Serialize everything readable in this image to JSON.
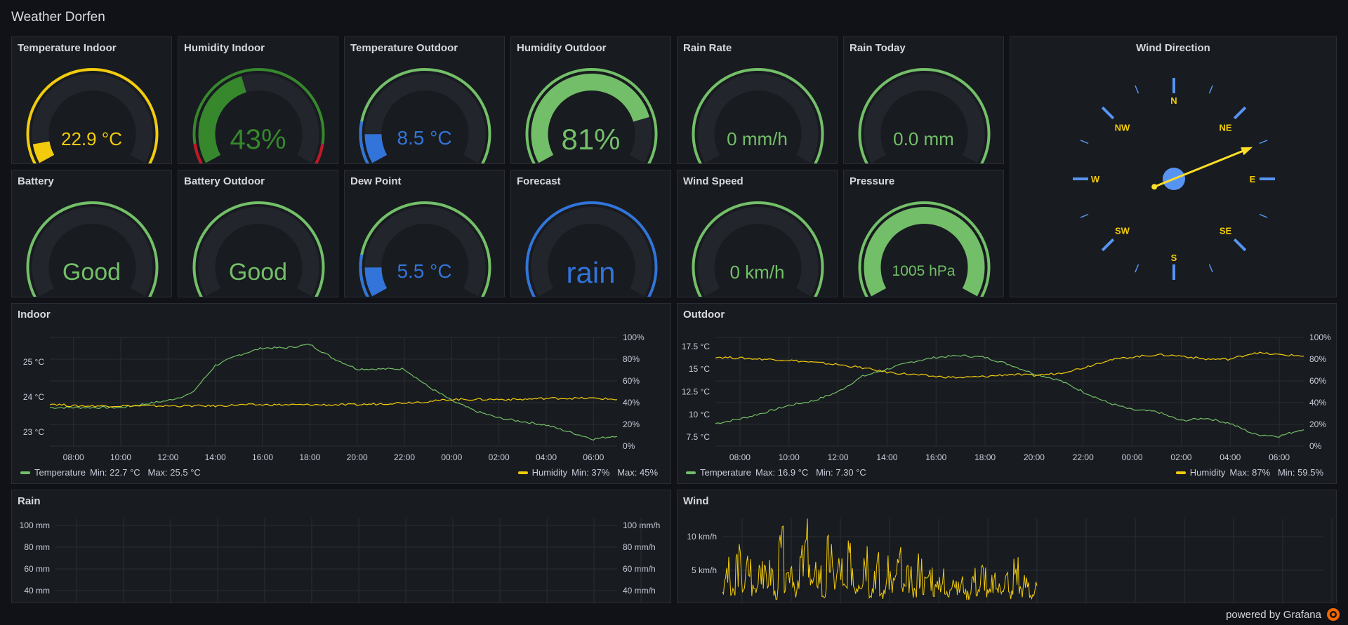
{
  "dashboard": {
    "title": "Weather Dorfen"
  },
  "gauges": [
    {
      "id": "temp-indoor",
      "title": "Temperature Indoor",
      "value": "22.9 °C",
      "fraction": 0.08,
      "color": "#f2cc0c",
      "track_color": "#f2cc0c"
    },
    {
      "id": "hum-indoor",
      "title": "Humidity Indoor",
      "value": "43%",
      "fraction": 0.43,
      "color": "#37872d"
    },
    {
      "id": "temp-outdoor",
      "title": "Temperature Outdoor",
      "value": "8.5 °C",
      "fraction": 0.12,
      "color": "#3274d9"
    },
    {
      "id": "hum-outdoor",
      "title": "Humidity Outdoor",
      "value": "81%",
      "fraction": 0.81,
      "color": "#73bf69"
    },
    {
      "id": "rain-rate",
      "title": "Rain Rate",
      "value": "0 mm/h",
      "fraction": 0,
      "color": "#73bf69"
    },
    {
      "id": "rain-today",
      "title": "Rain Today",
      "value": "0.0 mm",
      "fraction": 0,
      "color": "#73bf69"
    },
    {
      "id": "battery",
      "title": "Battery",
      "value": "Good",
      "fraction": 0,
      "color": "#73bf69"
    },
    {
      "id": "battery-outdoor",
      "title": "Battery Outdoor",
      "value": "Good",
      "fraction": 0,
      "color": "#73bf69"
    },
    {
      "id": "dew-point",
      "title": "Dew Point",
      "value": "5.5 °C",
      "fraction": 0.12,
      "color": "#3274d9"
    },
    {
      "id": "forecast",
      "title": "Forecast",
      "value": "rain",
      "fraction": 0,
      "color": "#3274d9"
    },
    {
      "id": "wind-speed",
      "title": "Wind Speed",
      "value": "0 km/h",
      "fraction": 0,
      "color": "#73bf69"
    },
    {
      "id": "pressure",
      "title": "Pressure",
      "value": "1005 hPa",
      "fraction": 1.0,
      "color": "#73bf69"
    }
  ],
  "wind_direction": {
    "title": "Wind Direction",
    "labels": [
      "N",
      "NE",
      "E",
      "SE",
      "S",
      "SW",
      "W",
      "NW"
    ],
    "direction_deg": 68
  },
  "indoor": {
    "title": "Indoor",
    "legend_temp": "Temperature",
    "legend_temp_stats": "Min: 22.7 °C   Max: 25.5 °C",
    "legend_hum": "Humidity",
    "legend_hum_stats": "Min: 37%   Max: 45%"
  },
  "outdoor": {
    "title": "Outdoor",
    "legend_temp": "Temperature",
    "legend_temp_stats": "Max: 16.9 °C   Min: 7.30 °C",
    "legend_hum": "Humidity",
    "legend_hum_stats": "Max: 87%   Min: 59.5%"
  },
  "rain": {
    "title": "Rain"
  },
  "wind": {
    "title": "Wind"
  },
  "footer": {
    "text": "powered by Grafana"
  },
  "chart_data": [
    {
      "type": "line",
      "name": "Indoor",
      "x": [
        "07:00",
        "08:00",
        "09:00",
        "10:00",
        "11:00",
        "12:00",
        "13:00",
        "14:00",
        "15:00",
        "16:00",
        "17:00",
        "18:00",
        "19:00",
        "20:00",
        "21:00",
        "22:00",
        "23:00",
        "00:00",
        "01:00",
        "02:00",
        "03:00",
        "04:00",
        "05:00",
        "06:00",
        "07:00"
      ],
      "x_ticks": [
        "08:00",
        "10:00",
        "12:00",
        "14:00",
        "16:00",
        "18:00",
        "20:00",
        "22:00",
        "00:00",
        "02:00",
        "04:00",
        "06:00"
      ],
      "y_left_ticks": [
        "23 °C",
        "24 °C",
        "25 °C"
      ],
      "y_right_ticks": [
        "0%",
        "20%",
        "40%",
        "60%",
        "80%",
        "100%"
      ],
      "ylim_left": [
        22.6,
        25.7
      ],
      "ylim_right": [
        0,
        100
      ],
      "series": [
        {
          "name": "Temperature",
          "axis": "left",
          "color": "#73bf69",
          "values": [
            23.7,
            23.7,
            23.7,
            23.7,
            23.8,
            23.9,
            24.1,
            24.9,
            25.2,
            25.4,
            25.4,
            25.5,
            25.1,
            24.8,
            24.8,
            24.8,
            24.3,
            23.9,
            23.6,
            23.4,
            23.3,
            23.2,
            23.0,
            22.8,
            22.9
          ]
        },
        {
          "name": "Humidity",
          "axis": "right",
          "color": "#f2cc0c",
          "values": [
            39,
            37,
            37,
            37,
            37,
            37,
            37,
            37,
            38,
            38,
            38,
            38,
            38,
            38,
            39,
            40,
            41,
            43,
            43,
            43,
            43,
            44,
            44,
            44,
            43
          ]
        }
      ]
    },
    {
      "type": "line",
      "name": "Outdoor",
      "x": [
        "07:00",
        "08:00",
        "09:00",
        "10:00",
        "11:00",
        "12:00",
        "13:00",
        "14:00",
        "15:00",
        "16:00",
        "17:00",
        "18:00",
        "19:00",
        "20:00",
        "21:00",
        "22:00",
        "23:00",
        "00:00",
        "01:00",
        "02:00",
        "03:00",
        "04:00",
        "05:00",
        "06:00",
        "07:00"
      ],
      "x_ticks": [
        "08:00",
        "10:00",
        "12:00",
        "14:00",
        "16:00",
        "18:00",
        "20:00",
        "22:00",
        "00:00",
        "02:00",
        "04:00",
        "06:00"
      ],
      "y_left_ticks": [
        "7.5 °C",
        "10 °C",
        "12.5 °C",
        "15 °C",
        "17.5 °C"
      ],
      "y_right_ticks": [
        "0%",
        "20%",
        "40%",
        "60%",
        "80%",
        "100%"
      ],
      "ylim_left": [
        6.5,
        18.5
      ],
      "ylim_right": [
        0,
        100
      ],
      "series": [
        {
          "name": "Temperature",
          "axis": "left",
          "color": "#73bf69",
          "values": [
            9.0,
            9.5,
            10.2,
            11.0,
            11.5,
            12.5,
            14.2,
            15.0,
            15.8,
            16.3,
            16.5,
            16.3,
            15.5,
            14.5,
            13.8,
            12.5,
            11.3,
            10.5,
            10.3,
            9.3,
            9.6,
            9.0,
            7.8,
            7.6,
            8.4
          ]
        },
        {
          "name": "Humidity",
          "axis": "right",
          "color": "#f2cc0c",
          "values": [
            82,
            81,
            80,
            79,
            77,
            75,
            72,
            68,
            66,
            64,
            63,
            64,
            66,
            65,
            67,
            72,
            79,
            82,
            84,
            83,
            80,
            80,
            86,
            84,
            83
          ]
        }
      ]
    },
    {
      "type": "line",
      "name": "Rain",
      "y_left_ticks": [
        "40 mm",
        "60 mm",
        "80 mm",
        "100 mm"
      ],
      "y_right_ticks": [
        "40 mm/h",
        "60 mm/h",
        "80 mm/h",
        "100 mm/h"
      ],
      "series": []
    },
    {
      "type": "line",
      "name": "Wind",
      "y_left_ticks": [
        "5 km/h",
        "10 km/h"
      ],
      "ylim_left": [
        0,
        12.5
      ],
      "series": [
        {
          "name": "Wind",
          "axis": "left",
          "color": "#f2cc0c",
          "values": [
            3,
            6,
            2,
            8,
            4,
            7,
            3,
            9,
            5,
            6,
            2,
            10,
            4,
            7,
            3,
            8,
            11,
            4,
            6,
            2,
            9,
            5,
            7,
            3,
            8,
            4,
            6,
            10,
            3,
            7,
            2,
            6,
            4,
            8,
            3,
            5,
            2,
            7,
            4,
            6,
            3,
            5,
            2,
            6,
            3,
            4,
            2,
            5,
            3,
            6,
            2,
            4,
            3,
            5,
            2,
            7,
            3,
            4,
            2,
            3
          ]
        }
      ]
    }
  ]
}
